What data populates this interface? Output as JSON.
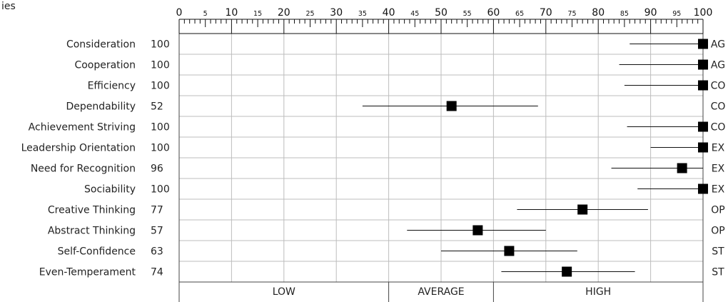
{
  "title_fragment": "ies",
  "chart_data": {
    "type": "scatter",
    "xlim": [
      0,
      100
    ],
    "major_ticks": [
      "0",
      "10",
      "20",
      "30",
      "40",
      "50",
      "60",
      "70",
      "80",
      "90",
      "100"
    ],
    "minor_ticks": [
      "5",
      "15",
      "25",
      "35",
      "45",
      "55",
      "65",
      "75",
      "85",
      "95"
    ],
    "grid": true,
    "rows": [
      {
        "label": "Consideration",
        "score": 100,
        "score_text": "100",
        "low": 86,
        "high": 100,
        "factor": "AG"
      },
      {
        "label": "Cooperation",
        "score": 100,
        "score_text": "100",
        "low": 84,
        "high": 100,
        "factor": "AG"
      },
      {
        "label": "Efficiency",
        "score": 100,
        "score_text": "100",
        "low": 85,
        "high": 100,
        "factor": "CO"
      },
      {
        "label": "Dependability",
        "score": 52,
        "score_text": "52",
        "low": 35,
        "high": 68.5,
        "factor": "CO"
      },
      {
        "label": "Achievement Striving",
        "score": 100,
        "score_text": "100",
        "low": 85.5,
        "high": 100,
        "factor": "CO"
      },
      {
        "label": "Leadership Orientation",
        "score": 100,
        "score_text": "100",
        "low": 90,
        "high": 100,
        "factor": "EX"
      },
      {
        "label": "Need for Recognition",
        "score": 96,
        "score_text": "96",
        "low": 82.5,
        "high": 100,
        "factor": "EX"
      },
      {
        "label": "Sociability",
        "score": 100,
        "score_text": "100",
        "low": 87.5,
        "high": 100,
        "factor": "EX"
      },
      {
        "label": "Creative Thinking",
        "score": 77,
        "score_text": "77",
        "low": 64.5,
        "high": 89.5,
        "factor": "OP"
      },
      {
        "label": "Abstract Thinking",
        "score": 57,
        "score_text": "57",
        "low": 43.5,
        "high": 70,
        "factor": "OP"
      },
      {
        "label": "Self-Confidence",
        "score": 63,
        "score_text": "63",
        "low": 50,
        "high": 76,
        "factor": "ST"
      },
      {
        "label": "Even-Temperament",
        "score": 74,
        "score_text": "74",
        "low": 61.5,
        "high": 87,
        "factor": "ST"
      }
    ],
    "bands": [
      {
        "label": "LOW",
        "from": 0,
        "to": 40
      },
      {
        "label": "AVERAGE",
        "from": 40,
        "to": 60
      },
      {
        "label": "HIGH",
        "from": 60,
        "to": 100
      }
    ]
  }
}
